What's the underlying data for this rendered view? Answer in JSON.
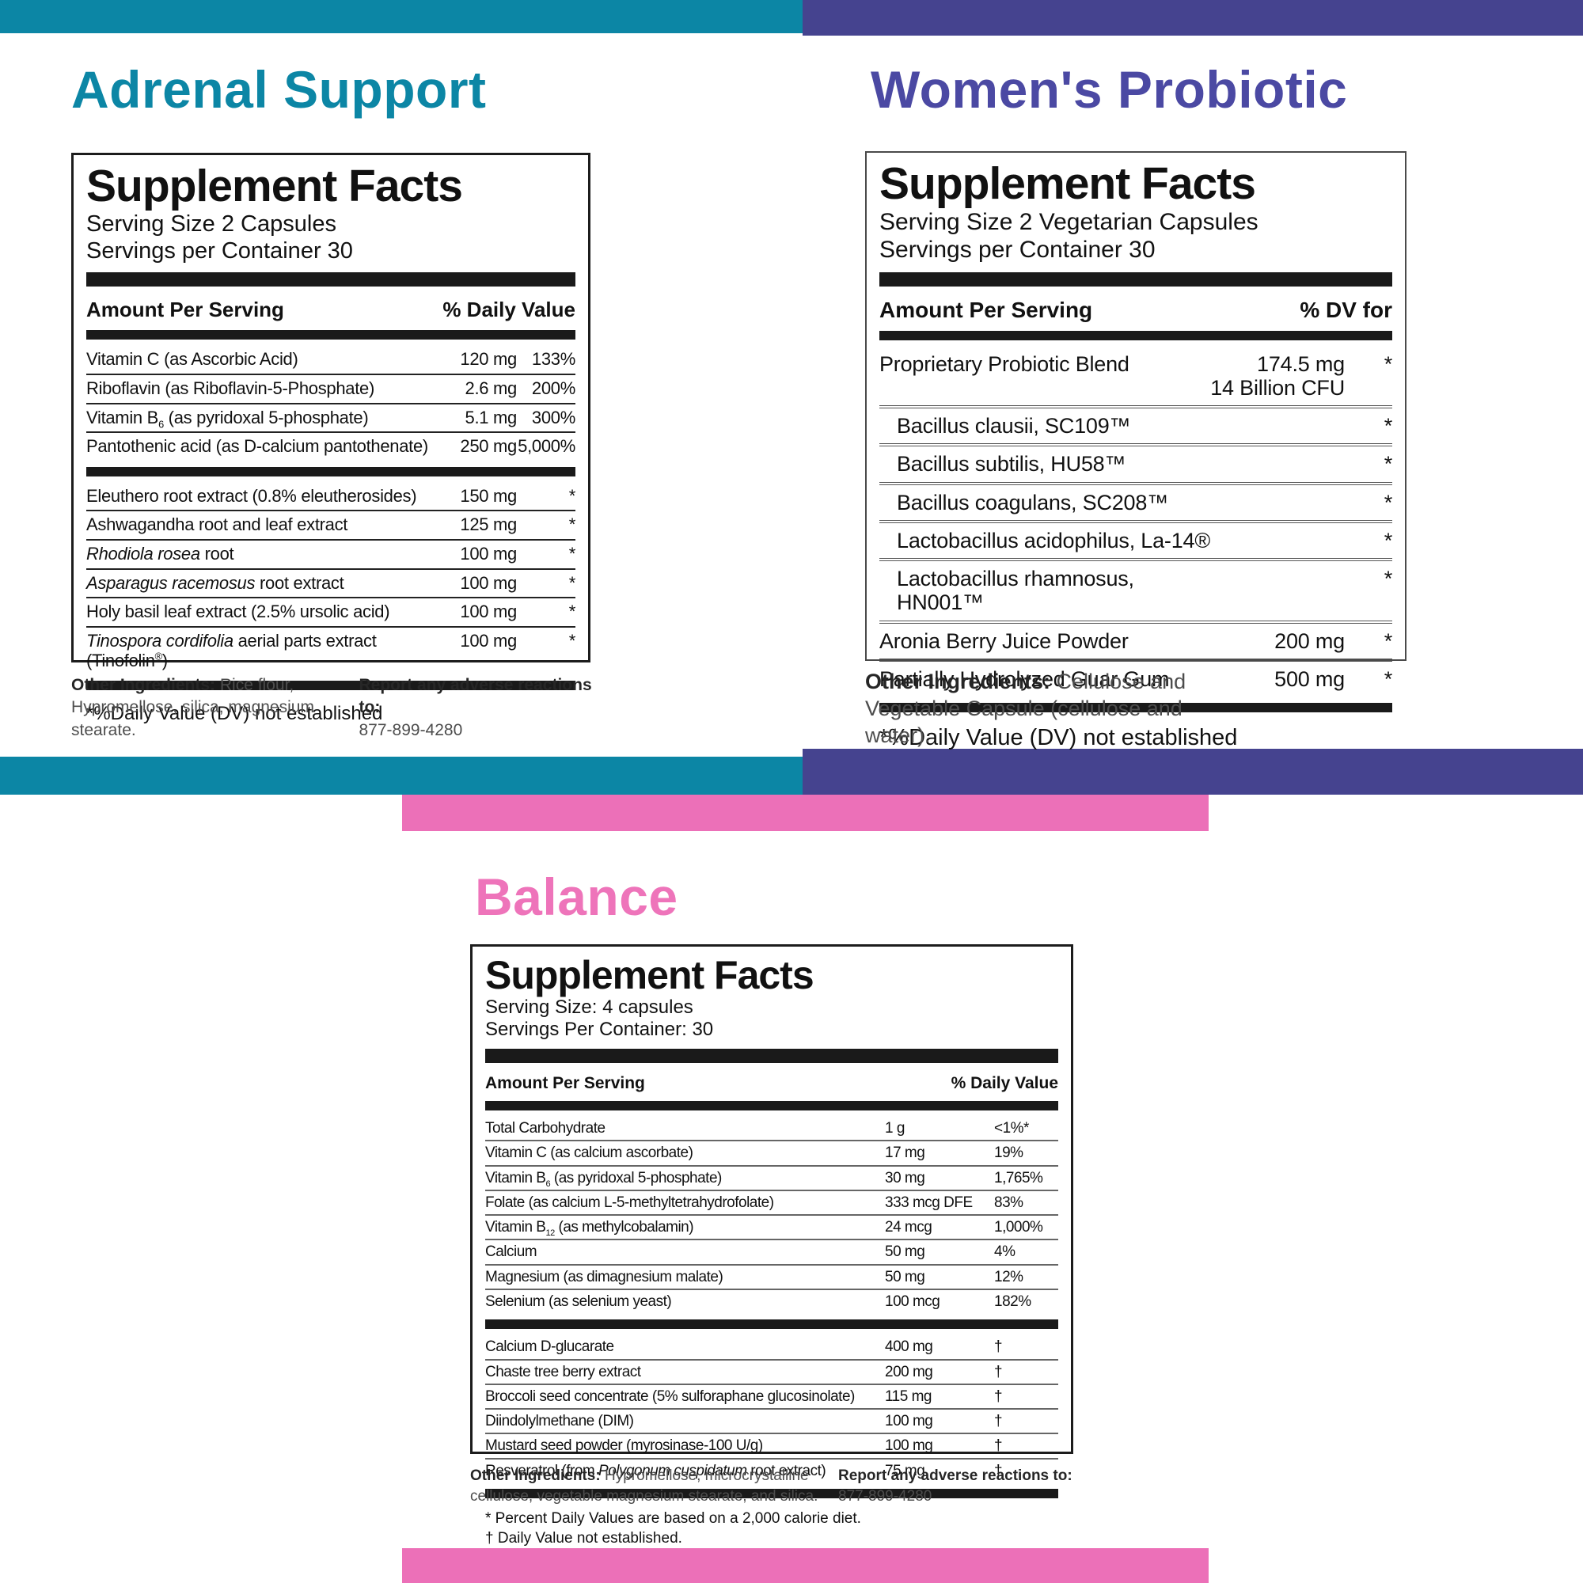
{
  "colors": {
    "teal": "#0c86a5",
    "purple_bar": "#45438f",
    "purple_title": "#4b49a3",
    "pink_bar": "#ec70b8",
    "pink_title": "#ee74ba",
    "text": "#111111"
  },
  "adrenal": {
    "title": "Adrenal Support",
    "facts": {
      "heading": "Supplement Facts",
      "serving_size": "Serving Size 2 Capsules",
      "servings_per_container": "Servings per Container 30",
      "amount_header": "Amount Per Serving",
      "dv_header": "% Daily Value",
      "rows_vitamins": [
        {
          "name": [
            [
              "Vitamin C (as Ascorbic Acid)",
              ""
            ]
          ],
          "amount": "120 mg",
          "dv": "133%"
        },
        {
          "name": [
            [
              "Riboflavin (as Riboflavin-5-Phosphate)",
              ""
            ]
          ],
          "amount": "2.6 mg",
          "dv": "200%"
        },
        {
          "name": [
            [
              "Vitamin B",
              ""
            ],
            [
              "6",
              "sub"
            ],
            [
              " (as pyridoxal 5-phosphate)",
              ""
            ]
          ],
          "amount": "5.1 mg",
          "dv": "300%"
        },
        {
          "name": [
            [
              "Pantothenic acid (as D-calcium pantothenate)",
              ""
            ]
          ],
          "amount": "250 mg",
          "dv": "5,000%"
        }
      ],
      "rows_botanicals": [
        {
          "name": [
            [
              "Eleuthero root extract (0.8% eleutherosides)",
              ""
            ]
          ],
          "amount": "150 mg",
          "dv": "*"
        },
        {
          "name": [
            [
              "Ashwagandha root and leaf extract",
              ""
            ]
          ],
          "amount": "125 mg",
          "dv": "*"
        },
        {
          "name": [
            [
              "Rhodiola rosea",
              "i"
            ],
            [
              " root",
              ""
            ]
          ],
          "amount": "100 mg",
          "dv": "*"
        },
        {
          "name": [
            [
              "Asparagus racemosus",
              "i"
            ],
            [
              " root extract",
              ""
            ]
          ],
          "amount": "100 mg",
          "dv": "*"
        },
        {
          "name": [
            [
              "Holy basil leaf extract (2.5% ursolic acid)",
              ""
            ]
          ],
          "amount": "100 mg",
          "dv": "*"
        },
        {
          "name": [
            [
              "Tinospora cordifolia",
              "i"
            ],
            [
              " aerial parts extract (Tinofolin",
              ""
            ],
            [
              "®",
              "sup"
            ],
            [
              ")",
              ""
            ]
          ],
          "amount": "100 mg",
          "dv": "*"
        }
      ],
      "footnote": "*%Daily Value (DV) not established"
    },
    "other_ingredients_label": "Other Ingredients:",
    "other_ingredients": "Rice flour, Hypromellose, silica, magnesium stearate.",
    "report_label": "Report any adverse reactions to:",
    "report_phone": "877-899-4280"
  },
  "probiotic": {
    "title": "Women's Probiotic",
    "facts": {
      "heading": "Supplement Facts",
      "serving_size": "Serving Size 2 Vegetarian Capsules",
      "servings_per_container": "Servings per Container 30",
      "amount_header": "Amount Per Serving",
      "dv_header": "% DV for",
      "rows": [
        {
          "name": [
            [
              "Proprietary Probiotic Blend",
              ""
            ]
          ],
          "amount": "174.5 mg",
          "amount2": "14 Billion CFU",
          "dv": "*",
          "twoline": true
        },
        {
          "name": [
            [
              "Bacillus clausii, SC109™",
              ""
            ]
          ],
          "dv": "*",
          "indent": true
        },
        {
          "name": [
            [
              "Bacillus subtilis, HU58™",
              ""
            ]
          ],
          "dv": "*",
          "indent": true
        },
        {
          "name": [
            [
              "Bacillus coagulans, SC208™",
              ""
            ]
          ],
          "dv": "*",
          "indent": true
        },
        {
          "name": [
            [
              "Lactobacillus acidophilus, La-14®",
              ""
            ]
          ],
          "dv": "*",
          "indent": true
        },
        {
          "name": [
            [
              "Lactobacillus rhamnosus, HN001™",
              ""
            ]
          ],
          "dv": "*",
          "indent": true
        },
        {
          "name": [
            [
              "Aronia Berry Juice Powder",
              ""
            ]
          ],
          "amount": "200 mg",
          "dv": "*"
        },
        {
          "name": [
            [
              "Partially Hydrolyzed Guar Gum",
              ""
            ]
          ],
          "amount": "500 mg",
          "dv": "*"
        }
      ],
      "footnote": "*%Daily Value (DV) not established"
    },
    "other_ingredients_label": "Other Ingredients:",
    "other_ingredients": "Cellulose and Vegetable Capsule (cellulose and water)."
  },
  "balance": {
    "title": "Balance",
    "facts": {
      "heading": "Supplement Facts",
      "serving_size": "Serving Size: 4 capsules",
      "servings_per_container": "Servings Per Container: 30",
      "amount_header": "Amount Per Serving",
      "dv_header": "% Daily Value",
      "rows_nutrients": [
        {
          "name": [
            [
              "Total Carbohydrate",
              ""
            ]
          ],
          "amount": "1 g",
          "dv": "<1%*"
        },
        {
          "name": [
            [
              "Vitamin C (as calcium ascorbate)",
              ""
            ]
          ],
          "amount": "17 mg",
          "dv": "19%"
        },
        {
          "name": [
            [
              "Vitamin B",
              ""
            ],
            [
              "6",
              "sub"
            ],
            [
              " (as pyridoxal 5-phosphate)",
              ""
            ]
          ],
          "amount": "30 mg",
          "dv": "1,765%"
        },
        {
          "name": [
            [
              "Folate (as calcium L-5-methyltetrahydrofolate)",
              ""
            ]
          ],
          "amount": "333 mcg DFE",
          "dv": "83%"
        },
        {
          "name": [
            [
              "Vitamin B",
              ""
            ],
            [
              "12",
              "sub"
            ],
            [
              " (as methylcobalamin)",
              ""
            ]
          ],
          "amount": "24 mcg",
          "dv": "1,000%"
        },
        {
          "name": [
            [
              "Calcium",
              ""
            ]
          ],
          "amount": "50 mg",
          "dv": "4%"
        },
        {
          "name": [
            [
              "Magnesium (as dimagnesium malate)",
              ""
            ]
          ],
          "amount": "50 mg",
          "dv": "12%"
        },
        {
          "name": [
            [
              "Selenium (as selenium yeast)",
              ""
            ]
          ],
          "amount": "100 mcg",
          "dv": "182%"
        }
      ],
      "rows_botanicals": [
        {
          "name": [
            [
              "Calcium D-glucarate",
              ""
            ]
          ],
          "amount": "400 mg",
          "dv": "†"
        },
        {
          "name": [
            [
              "Chaste tree berry extract",
              ""
            ]
          ],
          "amount": "200 mg",
          "dv": "†"
        },
        {
          "name": [
            [
              "Broccoli seed concentrate (5% sulforaphane glucosinolate)",
              ""
            ]
          ],
          "amount": "115 mg",
          "dv": "†"
        },
        {
          "name": [
            [
              "Diindolylmethane (DIM)",
              ""
            ]
          ],
          "amount": "100 mg",
          "dv": "†"
        },
        {
          "name": [
            [
              "Mustard seed powder (myrosinase-100 U/g)",
              ""
            ]
          ],
          "amount": "100 mg",
          "dv": "†"
        },
        {
          "name": [
            [
              "Resveratrol (from ",
              ""
            ],
            [
              "Polygonum cuspidatum",
              "i"
            ],
            [
              " root extract)",
              ""
            ]
          ],
          "amount": "75 mg",
          "dv": "†"
        }
      ],
      "footnote_1": "* Percent Daily Values are based on a 2,000 calorie diet.",
      "footnote_2": "† Daily Value not established."
    },
    "other_ingredients_label": "Other Ingredients:",
    "other_ingredients": "Hypromellose, microcrystalline cellulose, vegetable magnesium stearate, and silica.",
    "report_label": "Report any adverse reactions to:",
    "report_phone": "877-899-4280"
  }
}
